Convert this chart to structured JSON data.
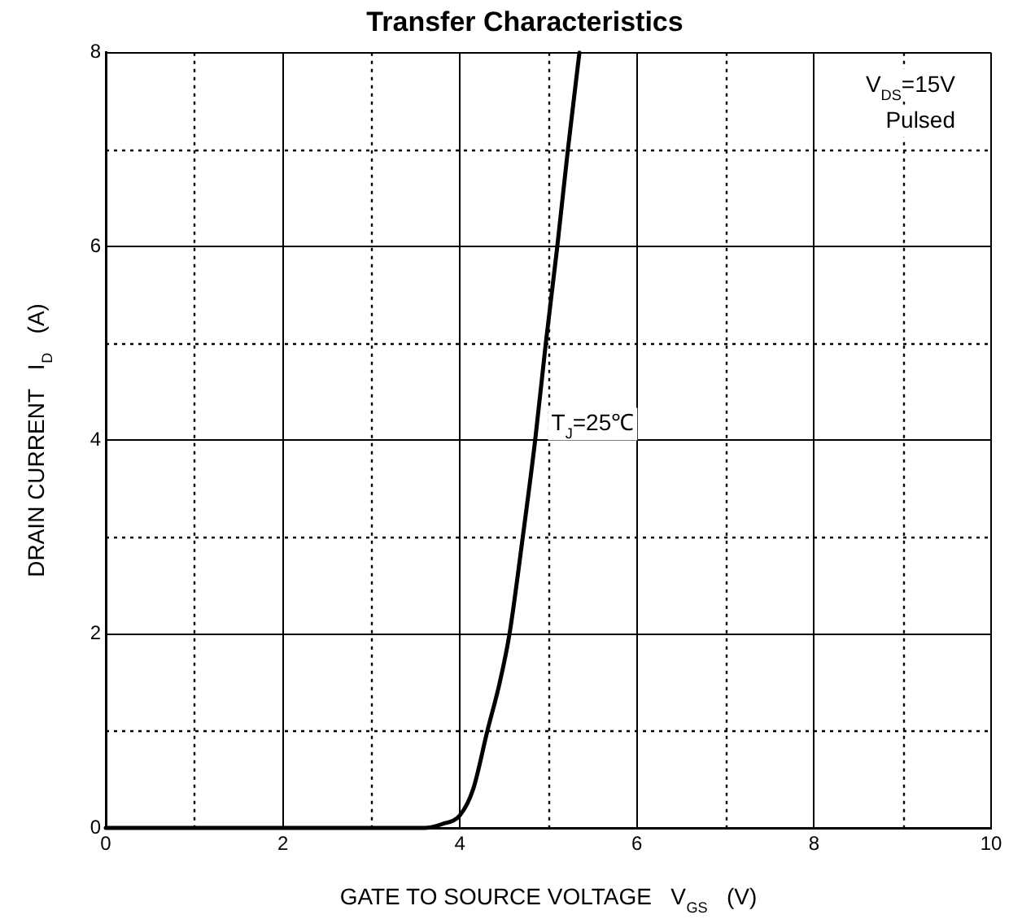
{
  "chart_data": {
    "type": "line",
    "title": "Transfer Characteristics",
    "xlabel": "GATE TO SOURCE VOLTAGE   V$_{GS}$   (V)",
    "ylabel": "DRAIN CURRENT   I$_{D}$   (A)",
    "x": [
      0,
      3.0,
      3.6,
      3.8,
      4.0,
      4.15,
      4.31,
      4.45,
      4.56,
      4.71,
      4.85,
      4.97,
      5.1,
      5.22,
      5.35
    ],
    "series": [
      {
        "color": "#000000",
        "values": [
          0,
          0,
          0,
          0.04,
          0.13,
          0.4,
          1,
          1.5,
          2,
          3,
          4,
          5,
          6,
          7,
          8
        ]
      }
    ],
    "xlim": [
      0,
      10
    ],
    "xticks": [
      0,
      {
        "value": 1,
        "label": null
      },
      2,
      {
        "value": 3,
        "label": null
      },
      4,
      {
        "value": 5,
        "label": null
      },
      6,
      {
        "value": 7,
        "label": null
      },
      8,
      {
        "value": 9,
        "label": null
      },
      10
    ],
    "ylim": [
      0,
      8
    ],
    "yticks": [
      0,
      {
        "value": 1,
        "label": null
      },
      2,
      {
        "value": 3,
        "label": null
      },
      4,
      {
        "value": 5,
        "label": null
      },
      6,
      {
        "value": 7,
        "label": null
      },
      8
    ],
    "grid": true,
    "legend": false,
    "marker": "none",
    "line_style": "solid",
    "annotations": [
      "V$_{DS}$=15V",
      "Pulsed",
      "T$_{J}$=25℃"
    ]
  }
}
